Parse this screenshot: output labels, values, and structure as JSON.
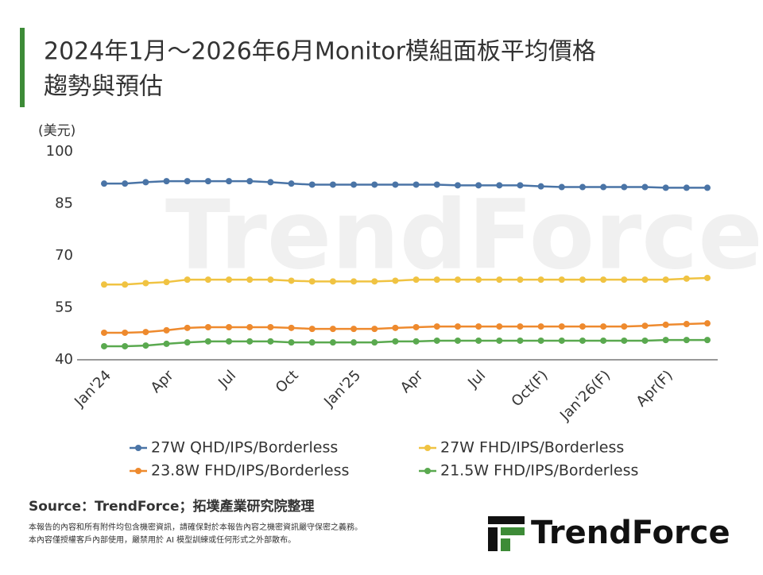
{
  "chart_data": {
    "type": "line",
    "title": [
      "2024年1月～2026年6月Monitor模組面板平均價格",
      "趨勢與預估"
    ],
    "y_label": "(美元)",
    "categories": [
      "Jan'24",
      null,
      null,
      "Apr",
      null,
      null,
      "Jul",
      null,
      null,
      "Oct",
      null,
      null,
      "Jan'25",
      null,
      null,
      "Apr",
      null,
      null,
      "Jul",
      null,
      null,
      "Oct(F)",
      null,
      null,
      "Jan'26(F)",
      null,
      null,
      "Apr(F)",
      null,
      null
    ],
    "ylim": [
      40,
      100
    ],
    "yticks": [
      40,
      55,
      70,
      85,
      100
    ],
    "grid": false,
    "series": [
      {
        "name": "27W QHD/IPS/Borderless",
        "color": "#4a74a6",
        "values": [
          90.8,
          90.8,
          91.2,
          91.5,
          91.5,
          91.5,
          91.5,
          91.5,
          91.2,
          90.8,
          90.5,
          90.5,
          90.5,
          90.5,
          90.5,
          90.5,
          90.5,
          90.3,
          90.3,
          90.3,
          90.3,
          90,
          89.8,
          89.8,
          89.8,
          89.8,
          89.8,
          89.6,
          89.6,
          89.6
        ]
      },
      {
        "name": "27W FHD/IPS/Borderless",
        "color": "#f0c342",
        "values": [
          61.7,
          61.7,
          62.1,
          62.4,
          63.1,
          63.1,
          63.1,
          63.1,
          63.1,
          62.8,
          62.6,
          62.6,
          62.6,
          62.6,
          62.8,
          63.1,
          63.1,
          63.1,
          63.1,
          63.1,
          63.1,
          63.1,
          63.1,
          63.1,
          63.1,
          63.1,
          63.1,
          63.1,
          63.4,
          63.6
        ]
      },
      {
        "name": "23.8W FHD/IPS/Borderless",
        "color": "#ee8a2e",
        "values": [
          47.8,
          47.8,
          48.0,
          48.5,
          49.2,
          49.4,
          49.4,
          49.4,
          49.4,
          49.2,
          48.9,
          48.9,
          48.9,
          48.9,
          49.2,
          49.4,
          49.6,
          49.6,
          49.6,
          49.6,
          49.6,
          49.6,
          49.6,
          49.6,
          49.6,
          49.6,
          49.8,
          50.1,
          50.3,
          50.5
        ]
      },
      {
        "name": "21.5W FHD/IPS/Borderless",
        "color": "#5aa94f",
        "values": [
          43.9,
          43.9,
          44.1,
          44.6,
          45.0,
          45.3,
          45.3,
          45.3,
          45.3,
          45.0,
          45.0,
          45.0,
          45.0,
          45.0,
          45.3,
          45.3,
          45.5,
          45.5,
          45.5,
          45.5,
          45.5,
          45.5,
          45.5,
          45.5,
          45.5,
          45.5,
          45.5,
          45.7,
          45.7,
          45.7
        ]
      }
    ]
  },
  "footer": {
    "source": "Source：TrendForce；拓墣產業研究院整理",
    "notes": [
      "本報告的內容和所有附件均包含機密資訊，請確保對於本報告內容之機密資訊嚴守保密之義務。",
      "本內容僅授權客戶內部使用，嚴禁用於 AI 模型訓練或任何形式之外部散布。"
    ],
    "logo": "TrendForce",
    "watermark": "TrendForce"
  }
}
